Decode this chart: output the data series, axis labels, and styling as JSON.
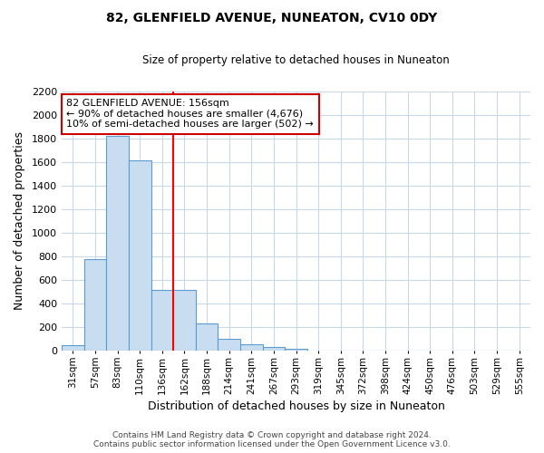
{
  "title1": "82, GLENFIELD AVENUE, NUNEATON, CV10 0DY",
  "title2": "Size of property relative to detached houses in Nuneaton",
  "xlabel": "Distribution of detached houses by size in Nuneaton",
  "ylabel": "Number of detached properties",
  "footer1": "Contains HM Land Registry data © Crown copyright and database right 2024.",
  "footer2": "Contains public sector information licensed under the Open Government Licence v3.0.",
  "bin_labels": [
    "31sqm",
    "57sqm",
    "83sqm",
    "110sqm",
    "136sqm",
    "162sqm",
    "188sqm",
    "214sqm",
    "241sqm",
    "267sqm",
    "293sqm",
    "319sqm",
    "345sqm",
    "372sqm",
    "398sqm",
    "424sqm",
    "450sqm",
    "476sqm",
    "503sqm",
    "529sqm",
    "555sqm"
  ],
  "bar_values": [
    50,
    780,
    1820,
    1610,
    520,
    520,
    230,
    105,
    55,
    30,
    15,
    0,
    0,
    0,
    0,
    0,
    0,
    0,
    0,
    0,
    0
  ],
  "bar_color": "#c9ddf0",
  "bar_edge_color": "#5b9bd5",
  "vline_x": 4.5,
  "vline_color": "#ff0000",
  "annotation_title": "82 GLENFIELD AVENUE: 156sqm",
  "annotation_line1": "← 90% of detached houses are smaller (4,676)",
  "annotation_line2": "10% of semi-detached houses are larger (502) →",
  "annotation_box_color": "white",
  "annotation_box_edge": "#cc0000",
  "ylim": [
    0,
    2200
  ],
  "background_color": "#ffffff",
  "plot_bg_color": "#ffffff",
  "grid_color": "#c8d8e8"
}
